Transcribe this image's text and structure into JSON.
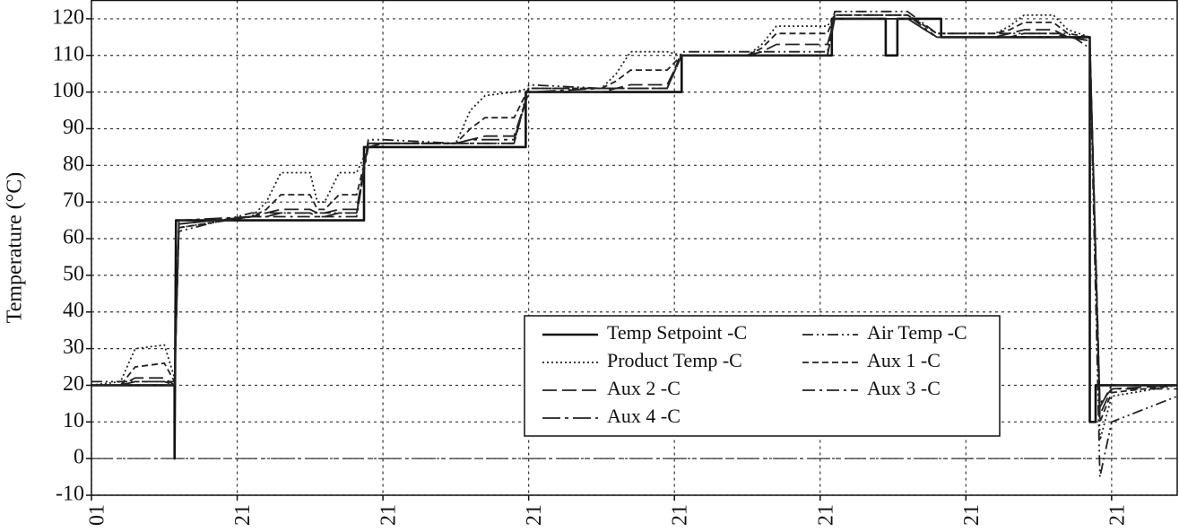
{
  "chart_data": {
    "type": "line",
    "y_label": "Temperature (°C)",
    "xlim": [
      0,
      7.45
    ],
    "xticks": [
      {
        "value": 0,
        "label": "01"
      },
      {
        "value": 1,
        "label": "21"
      },
      {
        "value": 2,
        "label": "21"
      },
      {
        "value": 3,
        "label": "21"
      },
      {
        "value": 4,
        "label": "21"
      },
      {
        "value": 5,
        "label": "21"
      },
      {
        "value": 6,
        "label": "21"
      },
      {
        "value": 7,
        "label": "21"
      }
    ],
    "ylim": [
      -10,
      125
    ],
    "yticks": [
      -10,
      0,
      10,
      20,
      30,
      40,
      50,
      60,
      70,
      80,
      90,
      100,
      110,
      120
    ],
    "grid": true,
    "zero_line": true,
    "legend_position": "lower-center",
    "series": [
      {
        "name": "Temp Setpoint -C",
        "color": "#111111",
        "dash": "solid",
        "x": [
          0,
          0.57,
          0.57,
          0.58,
          1.87,
          1.87,
          2.98,
          2.98,
          4.05,
          4.05,
          5.08,
          5.08,
          5.45,
          5.45,
          5.53,
          5.53,
          5.83,
          5.83,
          6.85,
          6.85,
          6.89,
          6.89,
          7.45
        ],
        "values": [
          20,
          20,
          0,
          65,
          65,
          85,
          85,
          100,
          100,
          110,
          110,
          120,
          120,
          110,
          110,
          120,
          120,
          115,
          115,
          10,
          10,
          20,
          20
        ]
      },
      {
        "name": "Air Temp -C",
        "color": "#222222",
        "dash": "dash-dot-dot",
        "x": [
          0,
          0.2,
          0.3,
          0.5,
          0.57,
          0.6,
          1.1,
          1.2,
          1.3,
          1.5,
          1.55,
          1.6,
          1.7,
          1.82,
          1.9,
          2.0,
          2.5,
          2.6,
          2.7,
          2.9,
          3.0,
          3.5,
          3.6,
          3.7,
          3.95,
          4.05,
          4.5,
          4.6,
          4.7,
          5.05,
          5.1,
          5.3,
          5.45,
          5.6,
          5.8,
          6.2,
          6.3,
          6.4,
          6.6,
          6.7,
          6.85,
          6.92,
          7.0,
          7.45
        ],
        "values": [
          21,
          21,
          21,
          21,
          21,
          62,
          67,
          67,
          67,
          67,
          67,
          67,
          67,
          67,
          87,
          87,
          86,
          86,
          86,
          86,
          102,
          101,
          101,
          101,
          101,
          111,
          111,
          111,
          111,
          111,
          122,
          122,
          122,
          122,
          116,
          116,
          116,
          116,
          116,
          116,
          112,
          -5,
          10,
          17
        ]
      },
      {
        "name": "Product Temp -C",
        "color": "#222222",
        "dash": "dotted",
        "x": [
          0,
          0.2,
          0.3,
          0.5,
          0.57,
          0.6,
          1.1,
          1.2,
          1.3,
          1.5,
          1.55,
          1.6,
          1.7,
          1.82,
          1.9,
          2.0,
          2.5,
          2.6,
          2.7,
          2.9,
          3.0,
          3.5,
          3.6,
          3.7,
          3.95,
          4.05,
          4.5,
          4.6,
          4.7,
          5.05,
          5.1,
          5.3,
          5.45,
          5.6,
          5.8,
          6.2,
          6.3,
          6.4,
          6.6,
          6.7,
          6.85,
          6.92,
          7.0,
          7.45
        ],
        "values": [
          20,
          21,
          30,
          31,
          22,
          63,
          66,
          70,
          78,
          78,
          70,
          70,
          78,
          78,
          85,
          86,
          86,
          95,
          99,
          100,
          101,
          101,
          105,
          111,
          111,
          110,
          110,
          113,
          118,
          118,
          121,
          121,
          121,
          121,
          116,
          116,
          118,
          121,
          121,
          117,
          115,
          5,
          17,
          20
        ]
      },
      {
        "name": "Aux 1 -C",
        "color": "#222222",
        "dash": "short-dash",
        "x": [
          0,
          0.2,
          0.3,
          0.5,
          0.57,
          0.6,
          1.1,
          1.2,
          1.3,
          1.5,
          1.55,
          1.6,
          1.7,
          1.82,
          1.9,
          2.0,
          2.5,
          2.6,
          2.7,
          2.9,
          3.0,
          3.5,
          3.6,
          3.7,
          3.95,
          4.05,
          4.5,
          4.6,
          4.7,
          5.05,
          5.1,
          5.3,
          5.45,
          5.6,
          5.8,
          6.2,
          6.3,
          6.4,
          6.6,
          6.7,
          6.85,
          6.92,
          7.0,
          7.45
        ],
        "values": [
          20,
          20,
          25,
          26,
          21,
          63,
          66,
          68,
          72,
          72,
          68,
          68,
          72,
          72,
          85,
          86,
          86,
          90,
          93,
          93,
          101,
          101,
          103,
          106,
          106,
          110,
          110,
          112,
          116,
          116,
          121,
          121,
          121,
          121,
          116,
          116,
          117,
          119,
          119,
          116,
          115,
          10,
          18,
          20
        ]
      },
      {
        "name": "Aux 2 -C",
        "color": "#222222",
        "dash": "long-dash",
        "x": [
          0,
          0.2,
          0.3,
          0.5,
          0.57,
          0.6,
          1.1,
          1.2,
          1.3,
          1.5,
          1.55,
          1.6,
          1.7,
          1.82,
          1.9,
          2.0,
          2.5,
          2.6,
          2.7,
          2.9,
          3.0,
          3.5,
          3.6,
          3.7,
          3.95,
          4.05,
          4.5,
          4.6,
          4.7,
          5.05,
          5.1,
          5.3,
          5.45,
          5.6,
          5.8,
          6.2,
          6.3,
          6.4,
          6.6,
          6.7,
          6.85,
          6.92,
          7.0,
          7.45
        ],
        "values": [
          20,
          20,
          22,
          22,
          20,
          64,
          66,
          67,
          68,
          68,
          67,
          67,
          68,
          68,
          86,
          86,
          86,
          87,
          88,
          88,
          100,
          100,
          101,
          102,
          102,
          110,
          110,
          111,
          113,
          113,
          120,
          120,
          120,
          120,
          115,
          115,
          116,
          117,
          117,
          115,
          114,
          12,
          19,
          20
        ]
      },
      {
        "name": "Aux 3 -C",
        "color": "#222222",
        "dash": "dash-dot",
        "x": [
          0,
          0.2,
          0.3,
          0.5,
          0.57,
          0.6,
          1.1,
          1.2,
          1.3,
          1.5,
          1.55,
          1.6,
          1.7,
          1.82,
          1.9,
          2.0,
          2.5,
          2.6,
          2.7,
          2.9,
          3.0,
          3.5,
          3.6,
          3.7,
          3.95,
          4.05,
          4.5,
          4.6,
          4.7,
          5.05,
          5.1,
          5.3,
          5.45,
          5.6,
          5.8,
          6.2,
          6.3,
          6.4,
          6.6,
          6.7,
          6.85,
          6.92,
          7.0,
          7.45
        ],
        "values": [
          20,
          20,
          20,
          20,
          20,
          64,
          66,
          66,
          66,
          66,
          66,
          66,
          66,
          66,
          86,
          86,
          86,
          86,
          86,
          86,
          101,
          101,
          101,
          101,
          101,
          110,
          110,
          110,
          110,
          110,
          121,
          121,
          121,
          121,
          115,
          115,
          115,
          115,
          115,
          115,
          114,
          15,
          19,
          19
        ]
      },
      {
        "name": "Aux 4 -C",
        "color": "#222222",
        "dash": "long-dash-dot",
        "x": [
          0,
          0.2,
          0.3,
          0.5,
          0.57,
          0.6,
          1.1,
          1.2,
          1.3,
          1.5,
          1.55,
          1.6,
          1.7,
          1.82,
          1.9,
          2.0,
          2.5,
          2.6,
          2.7,
          2.9,
          3.0,
          3.5,
          3.6,
          3.7,
          3.95,
          4.05,
          4.5,
          4.6,
          4.7,
          5.05,
          5.1,
          5.3,
          5.45,
          5.6,
          5.8,
          6.2,
          6.3,
          6.4,
          6.6,
          6.7,
          6.85,
          6.92,
          7.0,
          7.45
        ],
        "values": [
          20,
          20,
          21,
          21,
          20,
          65,
          66,
          66,
          67,
          67,
          66,
          66,
          67,
          67,
          85,
          86,
          86,
          87,
          87,
          87,
          100,
          101,
          101,
          101,
          101,
          110,
          110,
          110,
          110,
          110,
          120,
          120,
          120,
          120,
          115,
          115,
          115,
          116,
          116,
          115,
          114,
          14,
          20,
          20
        ]
      }
    ]
  }
}
